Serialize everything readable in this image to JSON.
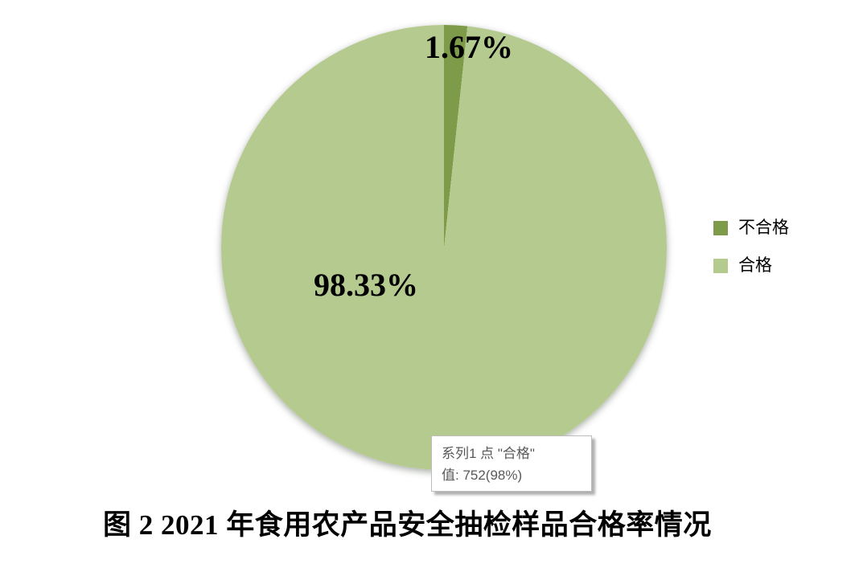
{
  "chart_data": {
    "type": "pie",
    "caption": "图 2 2021 年食用农产品安全抽检样品合格率情况",
    "start_angle_deg": 0,
    "direction": "clockwise",
    "legend_position": "right",
    "slices": [
      {
        "label": "不合格",
        "value_pct": 1.67,
        "display_label": "1.67%",
        "color": "#7e9b49"
      },
      {
        "label": "合格",
        "value_pct": 98.33,
        "value": 752,
        "display_label": "98.33%",
        "color": "#b5ca8f"
      }
    ],
    "series_name": "系列1"
  },
  "tooltip": {
    "line1": "系列1 点 \"合格\"",
    "line2": "值: 752(98%)"
  },
  "colors": {
    "background": "#ffffff",
    "label_text": "#000000",
    "tooltip_text": "#595959",
    "tooltip_border": "#bdbdbd"
  }
}
